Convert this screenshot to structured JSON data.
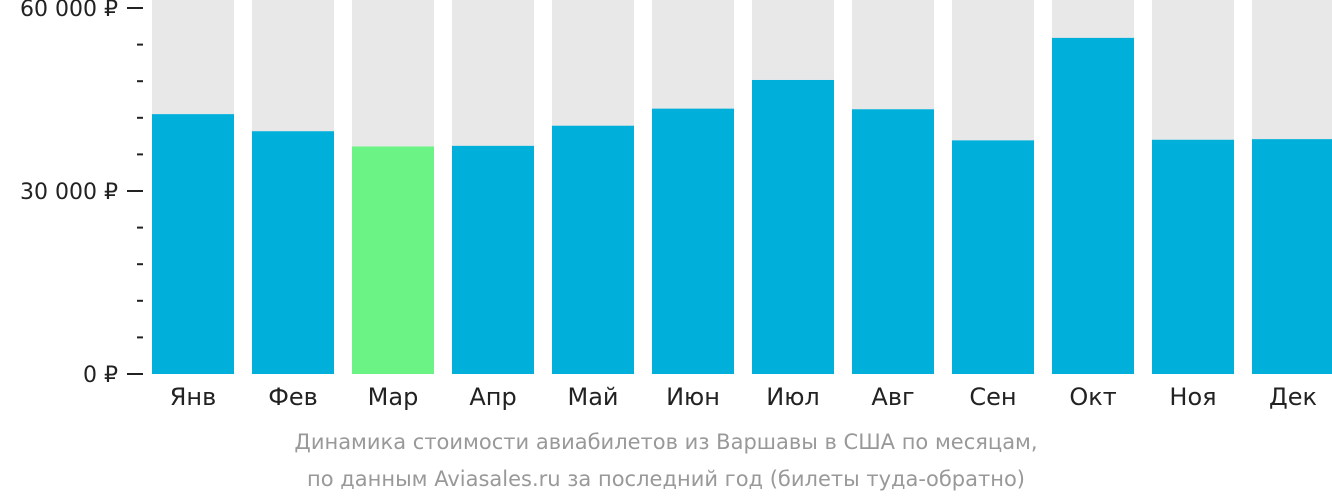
{
  "chart_data": {
    "type": "bar",
    "categories": [
      "Янв",
      "Фев",
      "Мар",
      "Апр",
      "Май",
      "Июн",
      "Июл",
      "Авг",
      "Сен",
      "Окт",
      "Ноя",
      "Дек"
    ],
    "values": [
      42600,
      39800,
      37300,
      37400,
      40700,
      43500,
      48200,
      43400,
      38300,
      55100,
      38400,
      38500
    ],
    "highlight_index": 2,
    "ylim": [
      0,
      60000
    ],
    "y_ticks": [
      {
        "value": 0,
        "label": "0 ₽"
      },
      {
        "value": 30000,
        "label": "30 000 ₽"
      },
      {
        "value": 60000,
        "label": "60 000 ₽"
      }
    ],
    "minor_tick_step": 6000,
    "title": "",
    "xlabel": "",
    "ylabel": ""
  },
  "caption": {
    "line1": "Динамика стоимости авиабилетов из Варшавы в США по месяцам,",
    "line2": "по данным Aviasales.ru за последний год (билеты туда-обратно)"
  },
  "colors": {
    "bar": "#00b0db",
    "highlight": "#6cf386",
    "track": "#e8e8e8",
    "axis": "#222222",
    "caption": "#999999"
  }
}
